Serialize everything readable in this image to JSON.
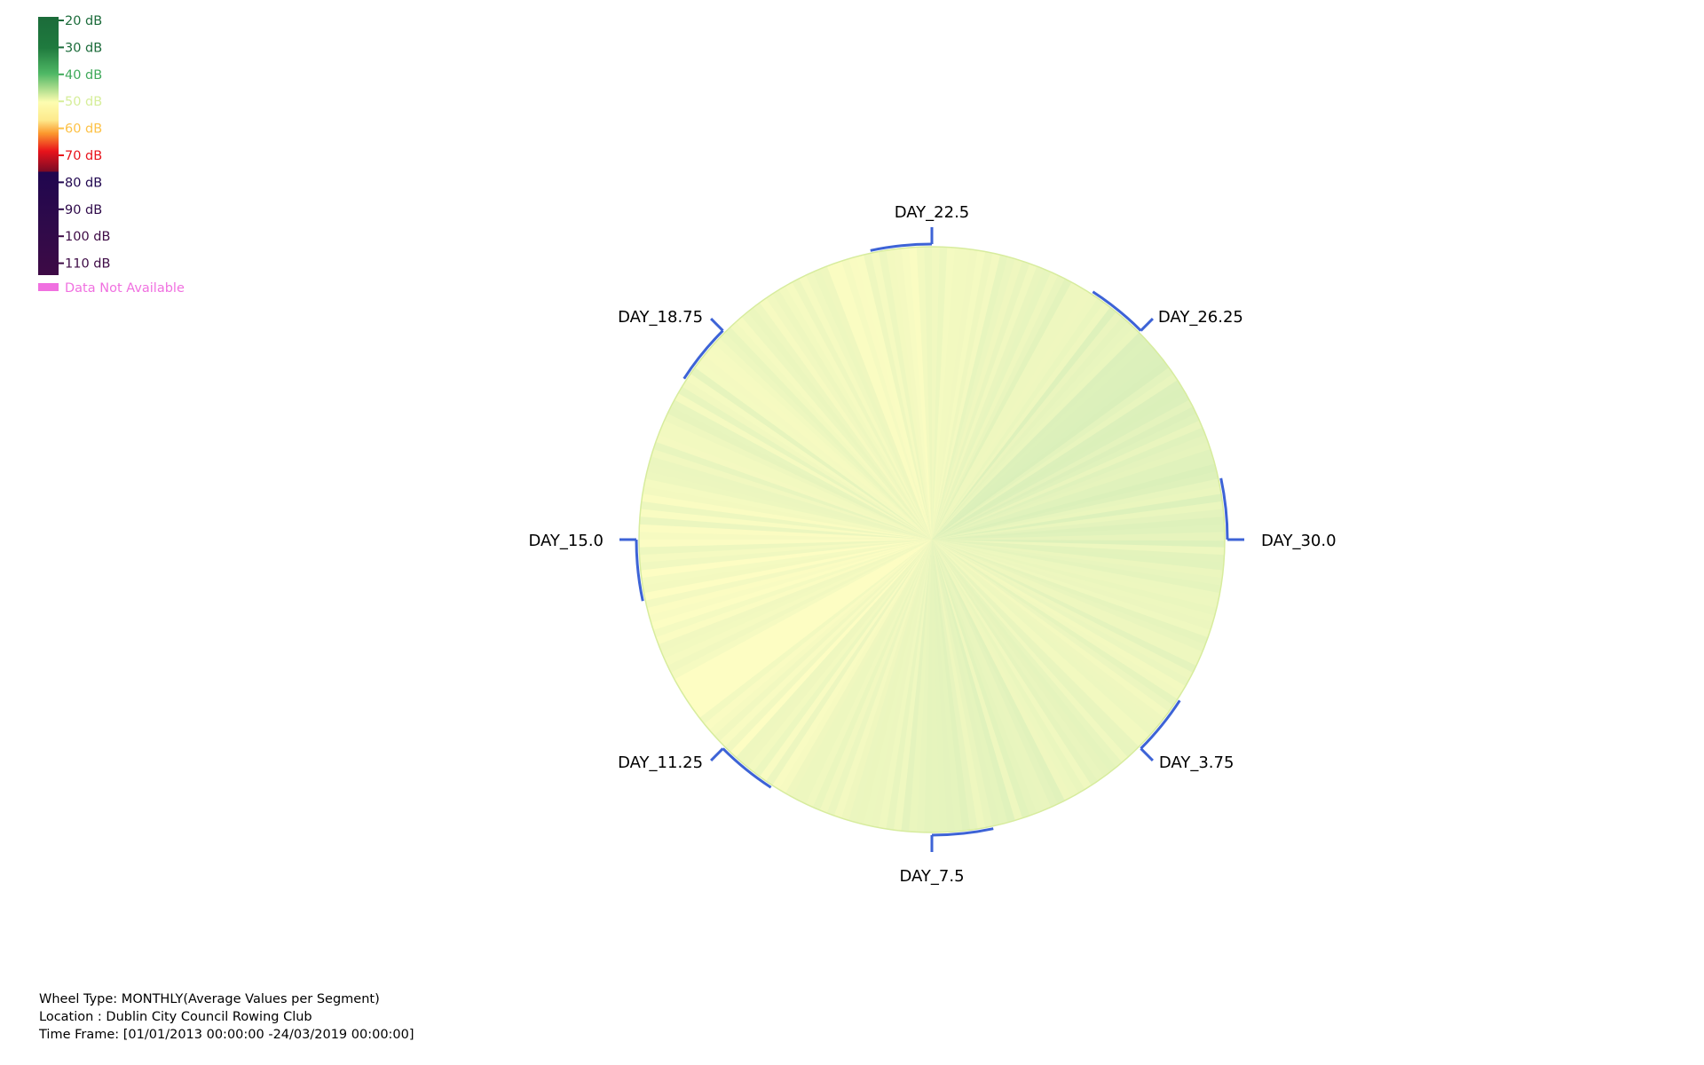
{
  "chart_data": {
    "type": "polar-heatmap",
    "title": "",
    "angular_axis": {
      "ticks": [
        "DAY_30.0",
        "DAY_3.75",
        "DAY_7.5",
        "DAY_11.25",
        "DAY_15.0",
        "DAY_18.75",
        "DAY_22.5",
        "DAY_26.25"
      ]
    },
    "legend": {
      "placement": "top-left",
      "scale": [
        {
          "label": "20 dB",
          "color": "#1b6b3a"
        },
        {
          "label": "30 dB",
          "color": "#1b6b3a"
        },
        {
          "label": "40 dB",
          "color": "#3fa95a"
        },
        {
          "label": "50 dB",
          "color": "#d6ee9a"
        },
        {
          "label": "60 dB",
          "color": "#fdc247"
        },
        {
          "label": "70 dB",
          "color": "#e8131b"
        },
        {
          "label": "80 dB",
          "color": "#20064f"
        },
        {
          "label": "90 dB",
          "color": "#2e0a4a"
        },
        {
          "label": "100 dB",
          "color": "#3d0a45"
        },
        {
          "label": "110 dB",
          "color": "#3d0a45"
        }
      ],
      "na_label": "Data Not Available",
      "na_color": "#f070e0"
    },
    "colors": {
      "axis_arc": "#3d63d6",
      "fill_low": "#d9efba",
      "fill_high": "#fdfdc3"
    }
  },
  "info": {
    "wheel_type": "Wheel Type: MONTHLY(Average Values per Segment)",
    "location": "Location  : Dublin City Council Rowing Club",
    "time_frame": "Time Frame: [01/01/2013 00:00:00 -24/03/2019 00:00:00]"
  }
}
